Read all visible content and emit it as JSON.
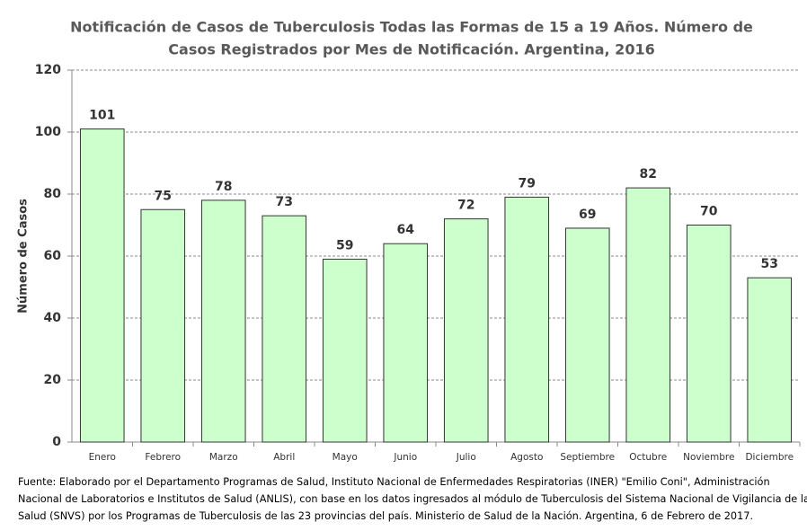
{
  "chart_data": {
    "type": "bar",
    "title": [
      "Notificación de Casos de Tuberculosis Todas las Formas de 15 a 19 Años. Número de",
      "Casos Registrados por Mes de Notificación. Argentina, 2016"
    ],
    "y_label": "Número de Casos",
    "categories": [
      "Enero",
      "Febrero",
      "Marzo",
      "Abril",
      "Mayo",
      "Junio",
      "Julio",
      "Agosto",
      "Septiembre",
      "Octubre",
      "Noviembre",
      "Diciembre"
    ],
    "values": [
      101,
      75,
      78,
      73,
      59,
      64,
      72,
      79,
      69,
      82,
      70,
      53
    ],
    "color": "#ccffcc",
    "ylim": [
      0,
      120
    ],
    "yticks": [
      0,
      20,
      40,
      60,
      80,
      100,
      120
    ],
    "grid": true,
    "source": [
      "Fuente: Elaborado por el Departamento Programas de Salud, Instituto Nacional de Enfermedades Respiratorias (INER) \"Emilio Coni\", Administración",
      "Nacional de Laboratorios e Institutos de Salud (ANLIS), con base en los datos ingresados al módulo de Tuberculosis del Sistema Nacional de Vigilancia de la",
      "Salud (SNVS) por los Programas de Tuberculosis de las 23 provincias del país. Ministerio de Salud de la Nación. Argentina,  6 de Febrero de 2017."
    ]
  }
}
